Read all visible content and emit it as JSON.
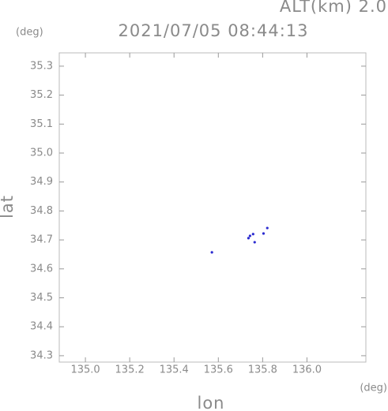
{
  "chart_data": {
    "type": "scatter",
    "title": "2021/07/05 08:44:13",
    "altitude_label": "ALT(km) 2.0",
    "y_unit": "(deg)",
    "x_unit": "(deg)",
    "x_label": "lon",
    "y_label": "lat",
    "xlim": [
      134.882,
      136.266
    ],
    "ylim": [
      34.278,
      35.346
    ],
    "xticks": [
      {
        "value": 135.0,
        "label": "135.0"
      },
      135.2,
      135.4,
      135.6,
      135.8,
      {
        "value": 136.0,
        "label": "136.0"
      }
    ],
    "yticks": [
      34.3,
      34.4,
      34.5,
      34.6,
      34.7,
      34.8,
      34.9,
      {
        "value": 35.0,
        "label": "35.0"
      },
      35.1,
      35.2,
      35.3
    ],
    "color": "#2b2bd0",
    "x": [
      135.571,
      135.736,
      135.743,
      135.757,
      135.764,
      135.804,
      135.821
    ],
    "values": [
      34.657,
      34.706,
      34.714,
      34.72,
      34.692,
      34.722,
      34.741
    ]
  }
}
